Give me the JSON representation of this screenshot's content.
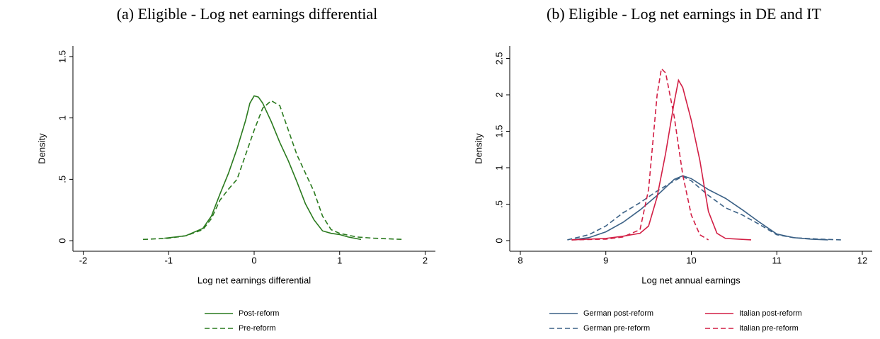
{
  "chart_data": [
    {
      "type": "line",
      "title": "(a) Eligible - Log net earnings differential",
      "x_label": "Log net earnings differential",
      "y_label": "Density",
      "xlim": [
        -2.12,
        2.12
      ],
      "ylim": [
        -0.086,
        1.586
      ],
      "xticks": [
        -2,
        -1,
        0,
        1,
        2
      ],
      "yticks": [
        0,
        {
          "value": 0.5,
          "label": ".5"
        },
        1,
        1.5
      ],
      "legend": "bottom",
      "series": [
        {
          "name": "Post-reform",
          "color": "#2a7a1e",
          "line_style": "solid",
          "x": [
            -1.05,
            -0.8,
            -0.6,
            -0.5,
            -0.4,
            -0.3,
            -0.2,
            -0.1,
            -0.05,
            0,
            0.05,
            0.1,
            0.2,
            0.3,
            0.4,
            0.5,
            0.6,
            0.7,
            0.8,
            0.9,
            1.0,
            1.1,
            1.25
          ],
          "values": [
            0.02,
            0.04,
            0.1,
            0.2,
            0.38,
            0.55,
            0.75,
            0.98,
            1.12,
            1.18,
            1.17,
            1.12,
            0.97,
            0.8,
            0.65,
            0.48,
            0.3,
            0.17,
            0.08,
            0.06,
            0.05,
            0.03,
            0.01
          ]
        },
        {
          "name": "Pre-reform",
          "color": "#2a7a1e",
          "line_style": "dashed",
          "x": [
            -1.3,
            -1.0,
            -0.8,
            -0.6,
            -0.5,
            -0.4,
            -0.3,
            -0.2,
            -0.1,
            0,
            0.1,
            0.2,
            0.3,
            0.4,
            0.5,
            0.6,
            0.7,
            0.8,
            0.9,
            1.0,
            1.2,
            1.4,
            1.75
          ],
          "values": [
            0.01,
            0.02,
            0.04,
            0.09,
            0.18,
            0.33,
            0.42,
            0.5,
            0.7,
            0.9,
            1.08,
            1.14,
            1.1,
            0.9,
            0.7,
            0.55,
            0.4,
            0.2,
            0.09,
            0.06,
            0.03,
            0.02,
            0.01
          ]
        }
      ]
    },
    {
      "type": "line",
      "title": "(b) Eligible - Log net earnings in DE and IT",
      "x_label": "Log net annual earnings",
      "y_label": "Density",
      "xlim": [
        7.876,
        12.116
      ],
      "ylim": [
        -0.146,
        2.67
      ],
      "xticks": [
        8,
        9,
        10,
        11,
        12
      ],
      "yticks": [
        0,
        {
          "value": 0.5,
          "label": ".5"
        },
        1,
        1.5,
        2,
        2.5
      ],
      "legend": "bottom",
      "series": [
        {
          "name": "German post-reform",
          "color": "#3b6186",
          "line_style": "solid",
          "x": [
            8.6,
            8.8,
            9.0,
            9.2,
            9.4,
            9.6,
            9.8,
            9.9,
            10.0,
            10.2,
            10.4,
            10.6,
            10.8,
            11.0,
            11.2,
            11.4,
            11.6
          ],
          "values": [
            0.01,
            0.04,
            0.12,
            0.25,
            0.42,
            0.62,
            0.84,
            0.89,
            0.85,
            0.7,
            0.58,
            0.42,
            0.25,
            0.09,
            0.04,
            0.02,
            0.01
          ]
        },
        {
          "name": "German pre-reform",
          "color": "#3b6186",
          "line_style": "dashed",
          "x": [
            8.55,
            8.8,
            9.0,
            9.2,
            9.4,
            9.6,
            9.8,
            9.9,
            10.0,
            10.2,
            10.4,
            10.6,
            10.8,
            11.0,
            11.2,
            11.5,
            11.75
          ],
          "values": [
            0.01,
            0.08,
            0.2,
            0.38,
            0.52,
            0.68,
            0.82,
            0.88,
            0.82,
            0.62,
            0.45,
            0.35,
            0.22,
            0.08,
            0.04,
            0.02,
            0.01
          ]
        },
        {
          "name": "Italian post-reform",
          "color": "#d21f45",
          "line_style": "solid",
          "x": [
            8.6,
            9.0,
            9.2,
            9.4,
            9.5,
            9.6,
            9.7,
            9.8,
            9.85,
            9.9,
            10.0,
            10.1,
            10.2,
            10.3,
            10.4,
            10.7
          ],
          "values": [
            0.01,
            0.03,
            0.06,
            0.1,
            0.2,
            0.6,
            1.2,
            1.9,
            2.2,
            2.1,
            1.65,
            1.1,
            0.4,
            0.1,
            0.03,
            0.01
          ]
        },
        {
          "name": "Italian pre-reform",
          "color": "#d21f45",
          "line_style": "dashed",
          "x": [
            8.6,
            9.0,
            9.2,
            9.4,
            9.5,
            9.6,
            9.65,
            9.7,
            9.8,
            9.9,
            10.0,
            10.1,
            10.2
          ],
          "values": [
            0.01,
            0.02,
            0.05,
            0.15,
            0.7,
            2.0,
            2.36,
            2.3,
            1.7,
            0.9,
            0.35,
            0.08,
            0.01
          ]
        }
      ]
    }
  ]
}
